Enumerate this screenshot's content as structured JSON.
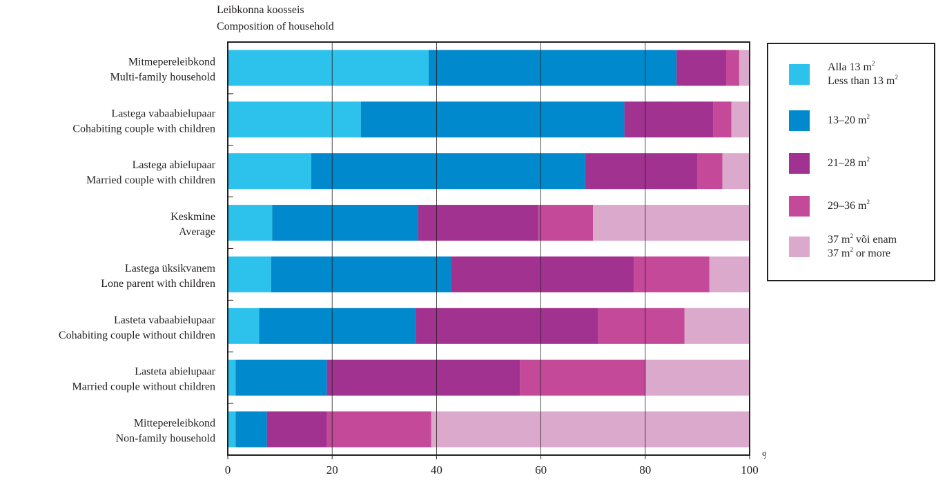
{
  "chart_data": {
    "type": "bar",
    "orientation": "horizontal",
    "stacked": true,
    "title_lines": [
      "Leibkonna koosseis",
      "Composition of household"
    ],
    "categories": [
      [
        "Mitmepereleibkond",
        "Multi-family household"
      ],
      [
        "Lastega vabaabielupaar",
        "Cohabiting couple with children"
      ],
      [
        "Lastega abielupaar",
        "Married couple with children"
      ],
      [
        "Keskmine",
        "Average"
      ],
      [
        "Lastega üksikvanem",
        "Lone parent with children"
      ],
      [
        "Lasteta vabaabielupaar",
        "Cohabiting couple without children"
      ],
      [
        "Lasteta abielupaar",
        "Married couple without children"
      ],
      [
        "Mittepereleibkond",
        "Non-family household"
      ]
    ],
    "series": [
      {
        "legend": [
          "Alla 13 m",
          "2",
          "",
          "Less than 13 m",
          "2",
          ""
        ],
        "color": "#2dc2ec",
        "values": [
          38.5,
          25.5,
          16,
          8.5,
          8.3,
          6,
          1.5,
          1.5
        ]
      },
      {
        "legend": [
          "13–20 m",
          "2",
          ""
        ],
        "color": "#0089cc",
        "values": [
          47.5,
          50.5,
          52.5,
          28,
          34.5,
          30,
          17.5,
          6
        ]
      },
      {
        "legend": [
          "21–28 m",
          "2",
          ""
        ],
        "color": "#a23290",
        "values": [
          9.5,
          17,
          21.5,
          23,
          35,
          35,
          37,
          11.5
        ]
      },
      {
        "legend": [
          "29–36 m",
          "2",
          ""
        ],
        "color": "#c44999",
        "values": [
          2.5,
          3.5,
          4.8,
          10.5,
          14.5,
          16.5,
          24,
          20
        ]
      },
      {
        "legend": [
          "37 m",
          "2",
          " või enam",
          "37 m",
          "2",
          " or more"
        ],
        "color": "#dba9cc",
        "values": [
          2,
          3.5,
          5.2,
          30,
          7.7,
          12.5,
          20,
          61
        ]
      }
    ],
    "x_ticks": [
      "0",
      "20",
      "40",
      "60",
      "80",
      "100"
    ],
    "xlim": [
      0,
      100
    ],
    "unit": "%",
    "grid": true,
    "legend_position": "right"
  }
}
